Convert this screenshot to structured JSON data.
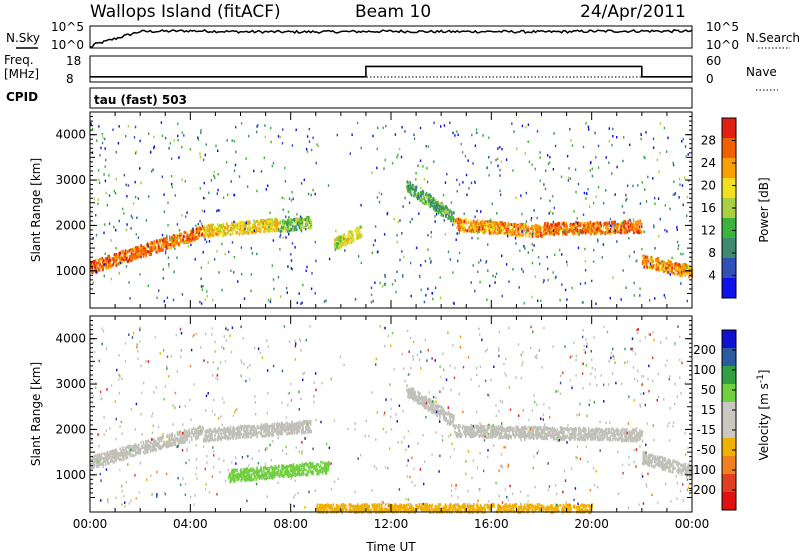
{
  "header": {
    "site": "Wallops Island (fitACF)",
    "beam": "Beam 10",
    "date": "24/Apr/2011"
  },
  "strip_labels": {
    "nsky": "N.Sky",
    "nsearch": "N.Search",
    "freq_top": "Freq.",
    "freq_unit": "[MHz]",
    "nave": "Nave",
    "cpid": "CPID",
    "cpid_value": "tau (fast) 503",
    "nsky_ticks": [
      "10^5",
      "10^0"
    ],
    "freq_ticks": [
      "18",
      "8"
    ],
    "nave_ticks": [
      "60",
      "0"
    ]
  },
  "colors": {
    "power_scale": [
      "#1010e8",
      "#3050b8",
      "#3c8a70",
      "#3cb43c",
      "#a8d040",
      "#f0e020",
      "#f8a000",
      "#f06000",
      "#e02010"
    ],
    "velocity_scale": [
      "#1010d0",
      "#2a5aa0",
      "#30a040",
      "#70d040",
      "#c8c8c0",
      "#c8c8c0",
      "#f0b000",
      "#f08020",
      "#e04020",
      "#e01010"
    ],
    "ground_scatter": "#c0c0b8"
  },
  "chart_data": [
    {
      "type": "line",
      "name_label": "N.Sky",
      "x": [
        "00:00",
        "02:00",
        "04:00",
        "06:00",
        "08:00",
        "10:00",
        "12:00",
        "14:00",
        "16:00",
        "18:00",
        "20:00",
        "22:00",
        "24:00"
      ],
      "ylim_label": [
        "10^0",
        "10^5"
      ],
      "level_fraction": [
        0.1,
        0.75,
        0.78,
        0.74,
        0.73,
        0.74,
        0.76,
        0.74,
        0.75,
        0.73,
        0.76,
        0.77,
        0.76
      ]
    },
    {
      "type": "line",
      "name_label": "Freq. [MHz]",
      "x": [
        "00:00",
        "11:00",
        "11:00",
        "22:00",
        "22:00",
        "24:00"
      ],
      "y": [
        10,
        10,
        14,
        14,
        10,
        10
      ],
      "ylim": [
        8,
        18
      ]
    },
    {
      "type": "heatmap",
      "title": "Power [dB]",
      "xlabel": "",
      "ylabel": "Slant Range [km]",
      "xlim": [
        0,
        24
      ],
      "ylim": [
        180,
        4500
      ],
      "x_ticks": [
        "00:00",
        "04:00",
        "08:00",
        "12:00",
        "16:00",
        "20:00",
        "00:00"
      ],
      "y_ticks": [
        1000,
        2000,
        3000,
        4000
      ],
      "colorbar_ticks": [
        4,
        8,
        12,
        16,
        20,
        24,
        28
      ],
      "bands": [
        {
          "t0": 0.0,
          "t1": 4.5,
          "r0": 1100,
          "r1": 1900,
          "level": 26
        },
        {
          "t0": 4.5,
          "t1": 7.5,
          "r0": 1900,
          "r1": 2050,
          "level": 20
        },
        {
          "t0": 7.5,
          "t1": 8.8,
          "r0": 2000,
          "r1": 2100,
          "level": 14
        },
        {
          "t0": 9.7,
          "t1": 10.8,
          "r0": 1600,
          "r1": 1900,
          "level": 18
        },
        {
          "t0": 12.6,
          "t1": 14.5,
          "r0": 2900,
          "r1": 2200,
          "level": 12
        },
        {
          "t0": 14.5,
          "t1": 18.0,
          "r0": 2050,
          "r1": 1900,
          "level": 24
        },
        {
          "t0": 18.0,
          "t1": 22.0,
          "r0": 1950,
          "r1": 2000,
          "level": 26
        },
        {
          "t0": 22.0,
          "t1": 24.0,
          "r0": 1250,
          "r1": 1000,
          "level": 24
        }
      ]
    },
    {
      "type": "heatmap",
      "title": "Velocity [m s-1]",
      "xlabel": "Time UT",
      "ylabel": "Slant Range [km]",
      "xlim": [
        0,
        24
      ],
      "ylim": [
        180,
        4500
      ],
      "x_ticks": [
        "00:00",
        "04:00",
        "08:00",
        "12:00",
        "16:00",
        "20:00",
        "00:00"
      ],
      "y_ticks": [
        1000,
        2000,
        3000,
        4000
      ],
      "colorbar_ticks": [
        200,
        100,
        50,
        15,
        -15,
        -50,
        -100,
        -200
      ],
      "bands": [
        {
          "t0": 0.0,
          "t1": 4.5,
          "r0": 1300,
          "r1": 2000,
          "level": 0
        },
        {
          "t0": 4.5,
          "t1": 8.8,
          "r0": 1900,
          "r1": 2100,
          "level": 0
        },
        {
          "t0": 5.5,
          "t1": 9.5,
          "r0": 1000,
          "r1": 1200,
          "level": 40
        },
        {
          "t0": 12.6,
          "t1": 14.5,
          "r0": 2900,
          "r1": 2200,
          "level": 0
        },
        {
          "t0": 14.5,
          "t1": 22.0,
          "r0": 2000,
          "r1": 1900,
          "level": 0
        },
        {
          "t0": 22.0,
          "t1": 24.0,
          "r0": 1400,
          "r1": 1100,
          "level": 0
        },
        {
          "t0": 9.0,
          "t1": 20.0,
          "r0": 250,
          "r1": 250,
          "level": -40
        }
      ]
    }
  ],
  "axes": {
    "x_title": "Time UT",
    "y_title": "Slant Range [km]",
    "power_cbar_title": "Power [dB]",
    "velocity_cbar_title_main": "Velocity [m s",
    "velocity_cbar_title_sup": "-1",
    "velocity_cbar_title_end": "]"
  }
}
